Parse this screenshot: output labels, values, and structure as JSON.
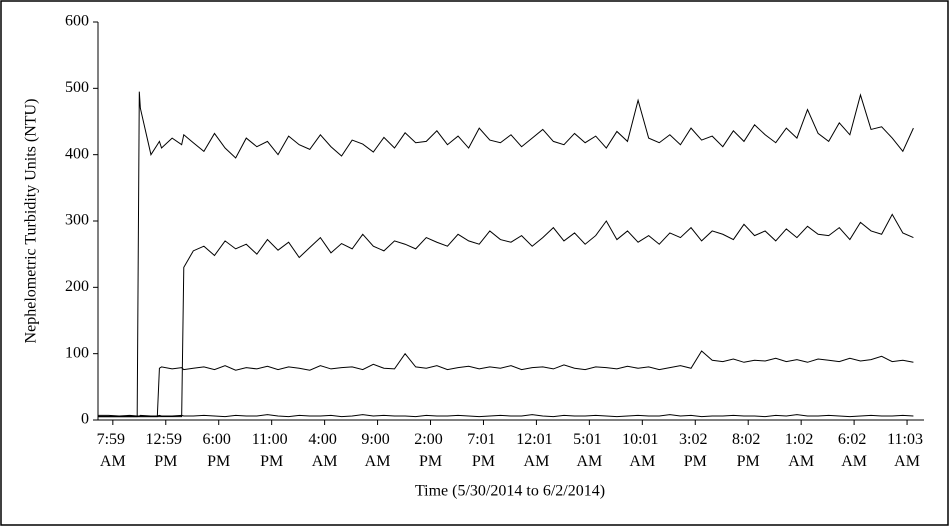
{
  "chart_data": {
    "type": "line",
    "x_label": "Time (5/30/2014 to 6/2/2014)",
    "y_label": "Nephelometric Turbidity Units (NTU)",
    "xlim": [
      0,
      78
    ],
    "xticks": [
      {
        "value": 1.4,
        "label": "7:59 AM"
      },
      {
        "value": 6.4,
        "label": "12:59 PM"
      },
      {
        "value": 11.4,
        "label": "6:00 PM"
      },
      {
        "value": 16.4,
        "label": "11:00 PM"
      },
      {
        "value": 21.4,
        "label": "4:00 AM"
      },
      {
        "value": 26.4,
        "label": "9:00 AM"
      },
      {
        "value": 31.4,
        "label": "2:00 PM"
      },
      {
        "value": 36.4,
        "label": "7:01 PM"
      },
      {
        "value": 41.4,
        "label": "12:01 AM"
      },
      {
        "value": 46.4,
        "label": "5:01 AM"
      },
      {
        "value": 51.4,
        "label": "10:01 AM"
      },
      {
        "value": 56.4,
        "label": "3:02 PM"
      },
      {
        "value": 61.4,
        "label": "8:02 PM"
      },
      {
        "value": 66.4,
        "label": "1:02 AM"
      },
      {
        "value": 71.4,
        "label": "6:02 AM"
      },
      {
        "value": 76.4,
        "label": "11:03 AM"
      }
    ],
    "ylim": [
      0,
      600
    ],
    "yticks": [
      0,
      100,
      200,
      300,
      400,
      500,
      600
    ],
    "x": [
      0,
      1,
      2,
      3,
      3.7,
      3.9,
      4,
      5,
      5.6,
      5.8,
      6,
      7,
      7.9,
      8.1,
      9,
      10,
      11,
      12,
      13,
      14,
      15,
      16,
      17,
      18,
      19,
      20,
      21,
      22,
      23,
      24,
      25,
      26,
      27,
      28,
      29,
      30,
      31,
      32,
      33,
      34,
      35,
      36,
      37,
      38,
      39,
      40,
      41,
      42,
      43,
      44,
      45,
      46,
      47,
      48,
      49,
      50,
      51,
      52,
      53,
      54,
      55,
      56,
      57,
      58,
      59,
      60,
      61,
      62,
      63,
      64,
      65,
      66,
      67,
      68,
      69,
      70,
      71,
      72,
      73,
      74,
      75,
      76,
      77
    ],
    "series": [
      {
        "color": "#000000",
        "values": [
          5,
          5,
          5,
          5,
          5,
          495,
          470,
          400,
          415,
          420,
          410,
          425,
          415,
          430,
          418,
          405,
          432,
          410,
          395,
          425,
          412,
          420,
          400,
          428,
          415,
          408,
          430,
          412,
          398,
          422,
          416,
          404,
          426,
          410,
          433,
          418,
          420,
          436,
          415,
          428,
          410,
          440,
          422,
          418,
          430,
          412,
          425,
          438,
          420,
          415,
          432,
          418,
          428,
          410,
          435,
          420,
          482,
          425,
          418,
          430,
          415,
          440,
          422,
          428,
          412,
          436,
          420,
          445,
          430,
          418,
          440,
          425,
          468,
          432,
          420,
          448,
          430,
          490,
          438,
          442,
          425,
          405,
          440
        ]
      },
      {
        "color": "#000000",
        "values": [
          5,
          5,
          5,
          5,
          5,
          5,
          5,
          5,
          5,
          5,
          5,
          5,
          5,
          230,
          255,
          262,
          248,
          270,
          258,
          265,
          250,
          272,
          256,
          268,
          245,
          260,
          275,
          252,
          266,
          258,
          280,
          262,
          255,
          270,
          265,
          258,
          275,
          268,
          262,
          280,
          270,
          265,
          285,
          272,
          268,
          278,
          262,
          275,
          290,
          270,
          282,
          265,
          278,
          300,
          272,
          285,
          268,
          278,
          265,
          282,
          275,
          290,
          270,
          285,
          280,
          272,
          295,
          278,
          285,
          270,
          288,
          275,
          292,
          280,
          278,
          290,
          272,
          298,
          285,
          280,
          310,
          282,
          275
        ]
      },
      {
        "color": "#000000",
        "values": [
          5,
          5,
          5,
          5,
          5,
          5,
          5,
          5,
          5,
          78,
          80,
          77,
          79,
          76,
          78,
          80,
          76,
          82,
          75,
          79,
          77,
          81,
          76,
          80,
          78,
          75,
          82,
          77,
          79,
          80,
          76,
          84,
          78,
          77,
          100,
          80,
          78,
          82,
          76,
          79,
          81,
          77,
          80,
          78,
          82,
          76,
          79,
          80,
          77,
          83,
          78,
          76,
          80,
          79,
          77,
          81,
          78,
          80,
          76,
          79,
          82,
          78,
          104,
          90,
          88,
          92,
          87,
          90,
          89,
          93,
          88,
          91,
          87,
          92,
          90,
          88,
          93,
          89,
          91,
          96,
          88,
          90,
          87
        ]
      },
      {
        "color": "#000000",
        "values": [
          7,
          7,
          6,
          7,
          6,
          6,
          7,
          6,
          6,
          7,
          6,
          6,
          7,
          6,
          6,
          7,
          6,
          5,
          7,
          6,
          6,
          8,
          6,
          5,
          7,
          6,
          6,
          7,
          5,
          6,
          8,
          6,
          7,
          6,
          6,
          5,
          7,
          6,
          6,
          7,
          6,
          5,
          6,
          7,
          6,
          6,
          8,
          6,
          5,
          7,
          6,
          6,
          7,
          6,
          5,
          6,
          7,
          6,
          6,
          8,
          6,
          7,
          5,
          6,
          6,
          7,
          6,
          6,
          5,
          7,
          6,
          8,
          6,
          6,
          7,
          6,
          5,
          6,
          7,
          6,
          6,
          7,
          6
        ]
      }
    ]
  }
}
